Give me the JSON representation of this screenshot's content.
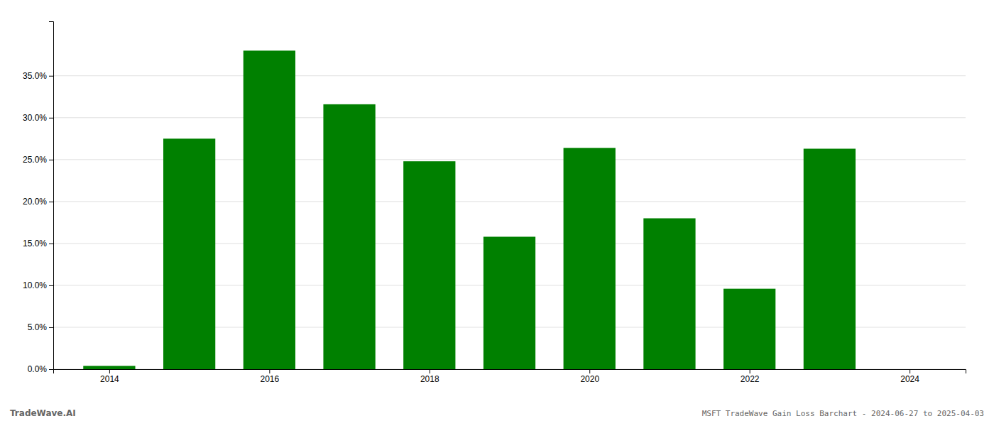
{
  "chart_data": {
    "type": "bar",
    "title": "MSFT TradeWave Gain Loss Barchart - 2024-06-27 to 2025-04-03",
    "annotations": [
      "TradeWave.AI"
    ],
    "x": [
      2014,
      2015,
      2016,
      2017,
      2018,
      2019,
      2020,
      2021,
      2022,
      2023,
      2024
    ],
    "values": [
      0.004,
      0.275,
      0.38,
      0.316,
      0.248,
      0.158,
      0.264,
      0.18,
      0.096,
      0.263,
      0.0
    ],
    "color": "#008000",
    "xlim": [
      2013.3,
      2024.7
    ],
    "xticks": [
      2014,
      2016,
      2018,
      2020,
      2022,
      2024
    ],
    "ylim": [
      0.0,
      0.415
    ],
    "yticks": [
      {
        "value": 0.0,
        "label": "0.0%"
      },
      {
        "value": 0.05,
        "label": "5.0%"
      },
      {
        "value": 0.1,
        "label": "10.0%"
      },
      {
        "value": 0.15,
        "label": "15.0%"
      },
      {
        "value": 0.2,
        "label": "20.0%"
      },
      {
        "value": 0.25,
        "label": "25.0%"
      },
      {
        "value": 0.3,
        "label": "30.0%"
      },
      {
        "value": 0.35,
        "label": "35.0%"
      }
    ],
    "grid": true
  }
}
